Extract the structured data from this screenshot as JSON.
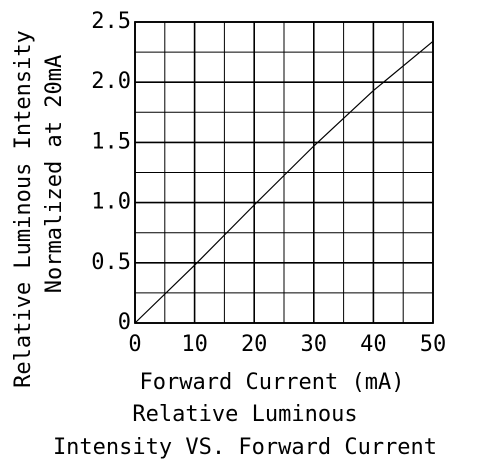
{
  "chart_data": {
    "type": "line",
    "title": "",
    "xlabel": "Forward  Current  (mA)",
    "ylabel": "Relative Luminous Intensity",
    "ylabel2": "Normalized  at 20mA",
    "caption_lines": [
      "Relative  Luminous",
      "Intensity  VS. Forward  Current"
    ],
    "xlim": [
      0,
      50
    ],
    "ylim": [
      0,
      2.5
    ],
    "x_ticks": [
      0,
      10,
      20,
      30,
      40,
      50
    ],
    "x_tick_labels": [
      "0",
      "10",
      "20",
      "30",
      "40",
      "50"
    ],
    "y_ticks": [
      0,
      0.5,
      1.0,
      1.5,
      2.0,
      2.5
    ],
    "y_tick_labels": [
      "0",
      "0.5",
      "1.0",
      "1.5",
      "2.0",
      "2.5"
    ],
    "grid": true,
    "grid_x_step": 5,
    "grid_y_step": 0.25,
    "series": [
      {
        "x": [
          0,
          10,
          20,
          30,
          40,
          50
        ],
        "y": [
          0,
          0.48,
          0.98,
          1.47,
          1.93,
          2.34
        ]
      }
    ],
    "colors": {
      "line": "#000000",
      "grid": "#000000",
      "background": "#ffffff"
    }
  }
}
